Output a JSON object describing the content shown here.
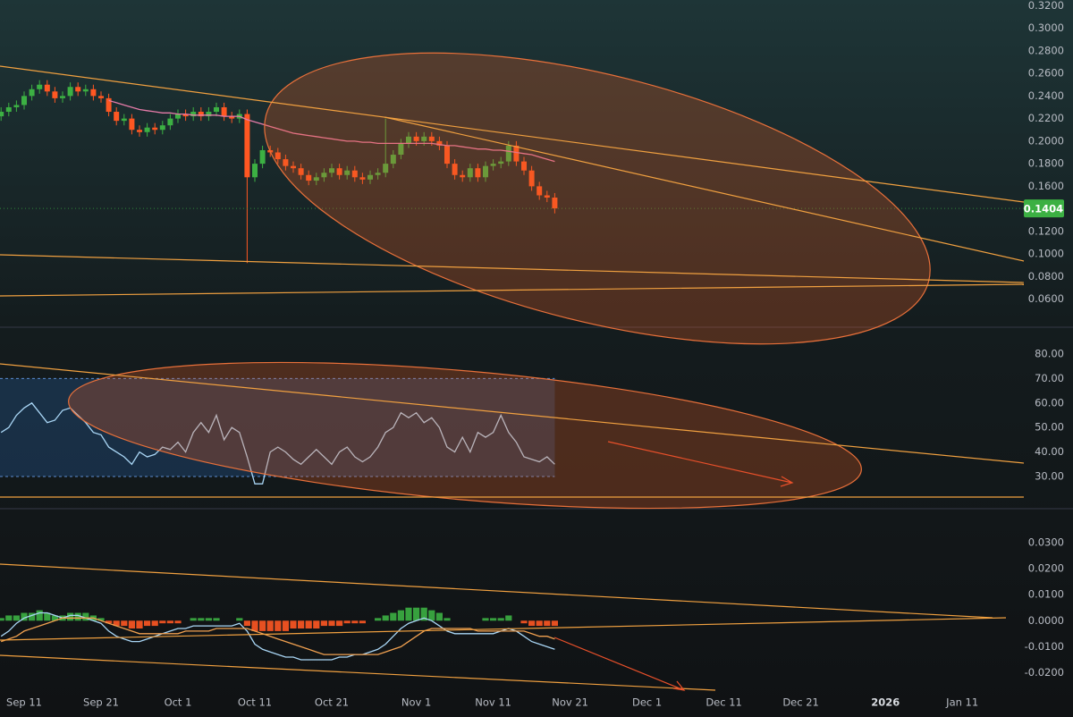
{
  "chart_data": [
    {
      "type": "candlestick",
      "x": [
        "Sep 8",
        "Sep 9",
        "Sep 10",
        "Sep 11",
        "Sep 12",
        "Sep 13",
        "Sep 14",
        "Sep 15",
        "Sep 16",
        "Sep 17",
        "Sep 18",
        "Sep 19",
        "Sep 20",
        "Sep 21",
        "Sep 22",
        "Sep 23",
        "Sep 24",
        "Sep 25",
        "Sep 26",
        "Sep 27",
        "Sep 28",
        "Sep 29",
        "Sep 30",
        "Oct 1",
        "Oct 2",
        "Oct 3",
        "Oct 4",
        "Oct 5",
        "Oct 6",
        "Oct 7",
        "Oct 8",
        "Oct 9",
        "Oct 10",
        "Oct 11",
        "Oct 12",
        "Oct 13",
        "Oct 14",
        "Oct 15",
        "Oct 16",
        "Oct 17",
        "Oct 18",
        "Oct 19",
        "Oct 20",
        "Oct 21",
        "Oct 22",
        "Oct 23",
        "Oct 24",
        "Oct 25",
        "Oct 26",
        "Oct 27",
        "Oct 28",
        "Oct 29",
        "Oct 30",
        "Oct 31",
        "Nov 1",
        "Nov 2",
        "Nov 3",
        "Nov 4",
        "Nov 5",
        "Nov 6",
        "Nov 7",
        "Nov 8",
        "Nov 9",
        "Nov 10",
        "Nov 11",
        "Nov 12",
        "Nov 13",
        "Nov 14",
        "Nov 15",
        "Nov 16",
        "Nov 17",
        "Nov 18",
        "Nov 19"
      ],
      "open": [
        0.222,
        0.226,
        0.23,
        0.232,
        0.24,
        0.246,
        0.25,
        0.244,
        0.238,
        0.24,
        0.248,
        0.244,
        0.246,
        0.24,
        0.238,
        0.226,
        0.218,
        0.22,
        0.21,
        0.208,
        0.212,
        0.21,
        0.214,
        0.22,
        0.224,
        0.222,
        0.226,
        0.222,
        0.226,
        0.23,
        0.222,
        0.22,
        0.224,
        0.168,
        0.18,
        0.192,
        0.19,
        0.184,
        0.178,
        0.176,
        0.17,
        0.165,
        0.168,
        0.172,
        0.176,
        0.17,
        0.174,
        0.168,
        0.166,
        0.17,
        0.172,
        0.18,
        0.188,
        0.198,
        0.204,
        0.2,
        0.204,
        0.2,
        0.196,
        0.18,
        0.17,
        0.168,
        0.176,
        0.168,
        0.178,
        0.18,
        0.182,
        0.196,
        0.182,
        0.174,
        0.16,
        0.152,
        0.15
      ],
      "high": [
        0.23,
        0.234,
        0.236,
        0.244,
        0.25,
        0.254,
        0.254,
        0.248,
        0.244,
        0.252,
        0.252,
        0.25,
        0.25,
        0.244,
        0.242,
        0.23,
        0.224,
        0.224,
        0.214,
        0.216,
        0.216,
        0.218,
        0.224,
        0.228,
        0.228,
        0.23,
        0.23,
        0.23,
        0.234,
        0.234,
        0.226,
        0.228,
        0.228,
        0.184,
        0.196,
        0.196,
        0.194,
        0.188,
        0.182,
        0.18,
        0.174,
        0.172,
        0.176,
        0.18,
        0.18,
        0.178,
        0.178,
        0.172,
        0.174,
        0.176,
        0.22,
        0.192,
        0.202,
        0.208,
        0.208,
        0.208,
        0.208,
        0.204,
        0.2,
        0.184,
        0.174,
        0.18,
        0.18,
        0.182,
        0.184,
        0.186,
        0.2,
        0.2,
        0.186,
        0.178,
        0.164,
        0.156,
        0.154
      ],
      "low": [
        0.218,
        0.222,
        0.226,
        0.228,
        0.236,
        0.242,
        0.24,
        0.234,
        0.234,
        0.236,
        0.24,
        0.24,
        0.236,
        0.234,
        0.222,
        0.214,
        0.214,
        0.206,
        0.204,
        0.204,
        0.206,
        0.206,
        0.21,
        0.216,
        0.218,
        0.218,
        0.218,
        0.218,
        0.222,
        0.218,
        0.216,
        0.216,
        0.092,
        0.164,
        0.176,
        0.186,
        0.18,
        0.174,
        0.172,
        0.166,
        0.161,
        0.161,
        0.164,
        0.168,
        0.166,
        0.166,
        0.164,
        0.162,
        0.162,
        0.166,
        0.168,
        0.176,
        0.184,
        0.194,
        0.196,
        0.196,
        0.196,
        0.192,
        0.176,
        0.166,
        0.164,
        0.164,
        0.164,
        0.164,
        0.174,
        0.176,
        0.178,
        0.178,
        0.17,
        0.156,
        0.148,
        0.146,
        0.136
      ],
      "close": [
        0.226,
        0.23,
        0.232,
        0.24,
        0.246,
        0.25,
        0.244,
        0.238,
        0.24,
        0.248,
        0.244,
        0.246,
        0.24,
        0.238,
        0.226,
        0.218,
        0.22,
        0.21,
        0.208,
        0.212,
        0.21,
        0.214,
        0.22,
        0.224,
        0.222,
        0.226,
        0.222,
        0.226,
        0.23,
        0.222,
        0.22,
        0.224,
        0.168,
        0.18,
        0.192,
        0.19,
        0.184,
        0.178,
        0.176,
        0.17,
        0.165,
        0.168,
        0.172,
        0.176,
        0.17,
        0.174,
        0.168,
        0.166,
        0.17,
        0.172,
        0.18,
        0.188,
        0.198,
        0.204,
        0.2,
        0.204,
        0.2,
        0.196,
        0.18,
        0.17,
        0.168,
        0.176,
        0.168,
        0.178,
        0.18,
        0.182,
        0.196,
        0.182,
        0.174,
        0.16,
        0.152,
        0.15,
        0.1404
      ],
      "up_color": "#3cb043",
      "down_color": "#ff5722",
      "series": [
        {
          "color": "#e57ba8",
          "values": [
            null,
            null,
            null,
            null,
            null,
            null,
            null,
            null,
            null,
            null,
            null,
            null,
            null,
            null,
            0.236,
            0.234,
            0.232,
            0.23,
            0.228,
            0.227,
            0.226,
            0.225,
            0.225,
            0.224,
            0.224,
            0.223,
            0.223,
            0.223,
            0.223,
            0.222,
            0.222,
            0.222,
            0.219,
            0.217,
            0.215,
            0.213,
            0.211,
            0.209,
            0.207,
            0.206,
            0.205,
            0.204,
            0.203,
            0.202,
            0.201,
            0.2,
            0.2,
            0.199,
            0.199,
            0.198,
            0.198,
            0.198,
            0.198,
            0.198,
            0.198,
            0.198,
            0.198,
            0.197,
            0.196,
            0.196,
            0.195,
            0.194,
            0.193,
            0.193,
            0.192,
            0.192,
            0.191,
            0.19,
            0.189,
            0.188,
            0.186,
            0.184,
            0.182
          ]
        }
      ],
      "last_label": "0.1404",
      "ylim": [
        0.036,
        0.325
      ],
      "yticks": [
        {
          "value": 0.32,
          "label": "0.3200"
        },
        {
          "value": 0.3,
          "label": "0.3000"
        },
        {
          "value": 0.28,
          "label": "0.2800"
        },
        {
          "value": 0.26,
          "label": "0.2600"
        },
        {
          "value": 0.24,
          "label": "0.2400"
        },
        {
          "value": 0.22,
          "label": "0.2200"
        },
        {
          "value": 0.2,
          "label": "0.2000"
        },
        {
          "value": 0.18,
          "label": "0.1800"
        },
        {
          "value": 0.16,
          "label": "0.1600"
        },
        {
          "value": 0.12,
          "label": "0.1200"
        },
        {
          "value": 0.1,
          "label": "0.1000"
        },
        {
          "value": 0.08,
          "label": "0.0800"
        },
        {
          "value": 0.06,
          "label": "0.0600"
        }
      ],
      "xticks": [
        "Sep 11",
        "Sep 21",
        "Oct 1",
        "Oct 11",
        "Oct 21",
        "Nov 1",
        "Nov 11",
        "Nov 21",
        "Dec 1",
        "Dec 11",
        "Dec 21",
        {
          "value": "Jan 1",
          "label": "2026"
        },
        "Jan 11"
      ]
    },
    {
      "type": "line",
      "series": [
        {
          "color": "#a9d6f5",
          "values": [
            48,
            50,
            55,
            58,
            60,
            56,
            52,
            53,
            57,
            58,
            55,
            52,
            48,
            47,
            42,
            40,
            38,
            35,
            40,
            38,
            39,
            42,
            41,
            44,
            40,
            48,
            52,
            48,
            55,
            45,
            50,
            48,
            38,
            27,
            27,
            40,
            42,
            40,
            37,
            35,
            38,
            41,
            38,
            35,
            40,
            42,
            38,
            36,
            38,
            42,
            48,
            50,
            56,
            54,
            56,
            52,
            54,
            50,
            42,
            40,
            46,
            40,
            48,
            46,
            48,
            55,
            48,
            44,
            38,
            37,
            36,
            38,
            35
          ]
        }
      ],
      "band": [
        30,
        70
      ],
      "ylim": [
        17.2,
        90.6
      ],
      "yticks": [
        {
          "value": 80,
          "label": "80.00"
        },
        {
          "value": 70,
          "label": "70.00"
        },
        {
          "value": 60,
          "label": "60.00"
        },
        {
          "value": 50,
          "label": "50.00"
        },
        {
          "value": 40,
          "label": "40.00"
        },
        {
          "value": 30,
          "label": "30.00"
        }
      ]
    },
    {
      "type": "bar",
      "values": [
        0.001,
        0.002,
        0.002,
        0.003,
        0.003,
        0.004,
        0.003,
        0.002,
        0.002,
        0.003,
        0.003,
        0.003,
        0.002,
        0.001,
        -0.001,
        -0.002,
        -0.002,
        -0.003,
        -0.003,
        -0.002,
        -0.002,
        -0.001,
        -0.001,
        -0.001,
        0,
        0.001,
        0.001,
        0.001,
        0.001,
        0,
        0,
        0.001,
        -0.002,
        -0.004,
        -0.004,
        -0.004,
        -0.004,
        -0.004,
        -0.003,
        -0.003,
        -0.003,
        -0.003,
        -0.002,
        -0.002,
        -0.002,
        -0.001,
        -0.001,
        -0.001,
        0,
        0.001,
        0.002,
        0.003,
        0.004,
        0.005,
        0.005,
        0.005,
        0.004,
        0.003,
        0.001,
        0,
        0,
        0,
        0,
        0.001,
        0.001,
        0.001,
        0.002,
        0,
        -0.001,
        -0.002,
        -0.002,
        -0.002,
        -0.002
      ],
      "up_color": "#3cb043",
      "down_color": "#ff5722",
      "series": [
        {
          "color": "#a9d6f5",
          "values": [
            -0.006,
            -0.004,
            -0.001,
            0.001,
            0.002,
            0.003,
            0.003,
            0.002,
            0.001,
            0.002,
            0.002,
            0.001,
            0,
            -0.001,
            -0.004,
            -0.006,
            -0.007,
            -0.008,
            -0.008,
            -0.007,
            -0.006,
            -0.005,
            -0.004,
            -0.003,
            -0.003,
            -0.002,
            -0.002,
            -0.002,
            -0.002,
            -0.002,
            -0.002,
            -0.001,
            -0.004,
            -0.009,
            -0.011,
            -0.012,
            -0.013,
            -0.014,
            -0.014,
            -0.015,
            -0.015,
            -0.015,
            -0.015,
            -0.015,
            -0.014,
            -0.014,
            -0.013,
            -0.013,
            -0.012,
            -0.011,
            -0.009,
            -0.006,
            -0.003,
            -0.001,
            0,
            0.001,
            0,
            -0.002,
            -0.004,
            -0.005,
            -0.005,
            -0.005,
            -0.005,
            -0.005,
            -0.005,
            -0.004,
            -0.003,
            -0.004,
            -0.006,
            -0.008,
            -0.009,
            -0.01,
            -0.011
          ]
        },
        {
          "color": "#f0a050",
          "values": [
            -0.008,
            -0.007,
            -0.006,
            -0.004,
            -0.003,
            -0.002,
            -0.001,
            0,
            0.001,
            0.001,
            0.001,
            0.001,
            0.001,
            0,
            -0.001,
            -0.002,
            -0.003,
            -0.004,
            -0.005,
            -0.005,
            -0.005,
            -0.005,
            -0.005,
            -0.005,
            -0.004,
            -0.004,
            -0.004,
            -0.004,
            -0.003,
            -0.003,
            -0.003,
            -0.003,
            -0.003,
            -0.004,
            -0.005,
            -0.006,
            -0.007,
            -0.008,
            -0.009,
            -0.01,
            -0.011,
            -0.012,
            -0.013,
            -0.013,
            -0.013,
            -0.013,
            -0.013,
            -0.013,
            -0.013,
            -0.013,
            -0.012,
            -0.011,
            -0.01,
            -0.008,
            -0.006,
            -0.004,
            -0.003,
            -0.003,
            -0.003,
            -0.003,
            -0.003,
            -0.003,
            -0.004,
            -0.004,
            -0.004,
            -0.004,
            -0.004,
            -0.004,
            -0.004,
            -0.005,
            -0.006,
            -0.006,
            -0.007
          ]
        }
      ],
      "ylim": [
        -0.026,
        0.043
      ],
      "yticks": [
        {
          "value": 0.03,
          "label": "0.0300"
        },
        {
          "value": 0.02,
          "label": "0.0200"
        },
        {
          "value": 0.01,
          "label": "0.0100"
        },
        {
          "value": 0,
          "label": "0.0000"
        },
        {
          "value": -0.01,
          "label": "-0.0100"
        },
        {
          "value": -0.02,
          "label": "-0.0200"
        }
      ]
    }
  ]
}
